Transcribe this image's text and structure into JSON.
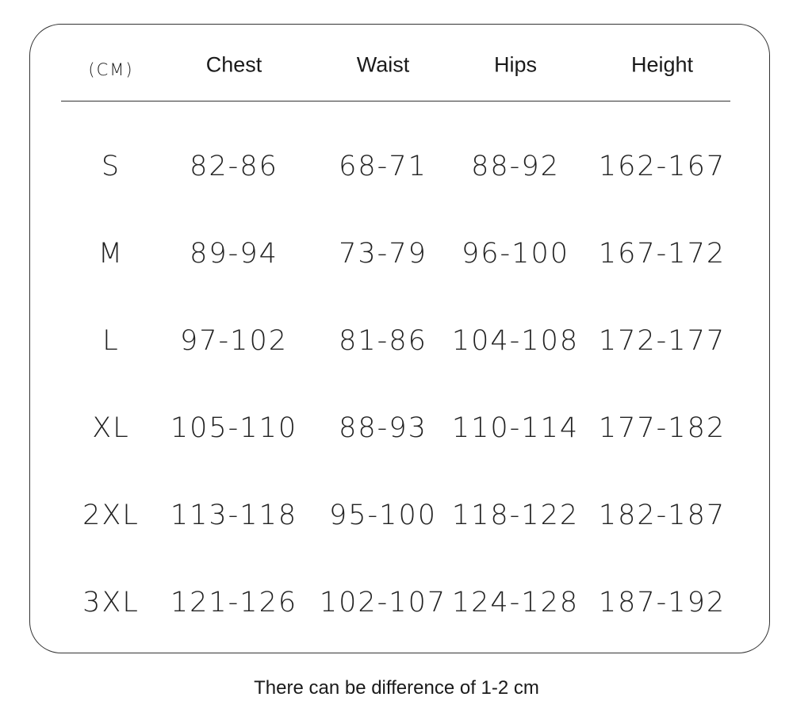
{
  "table": {
    "unit_label": "(CM)",
    "columns": [
      "Chest",
      "Waist",
      "Hips",
      "Height"
    ],
    "rows": [
      {
        "size": "S",
        "values": [
          "82-86",
          "68-71",
          "88-92",
          "162-167"
        ]
      },
      {
        "size": "M",
        "values": [
          "89-94",
          "73-79",
          "96-100",
          "167-172"
        ]
      },
      {
        "size": "L",
        "values": [
          "97-102",
          "81-86",
          "104-108",
          "172-177"
        ]
      },
      {
        "size": "XL",
        "values": [
          "105-110",
          "88-93",
          "110-114",
          "177-182"
        ]
      },
      {
        "size": "2XL",
        "values": [
          "113-118",
          "95-100",
          "118-122",
          "182-187"
        ]
      },
      {
        "size": "3XL",
        "values": [
          "121-126",
          "102-107",
          "124-128",
          "187-192"
        ]
      }
    ]
  },
  "note": "There can be difference of 1-2 cm"
}
